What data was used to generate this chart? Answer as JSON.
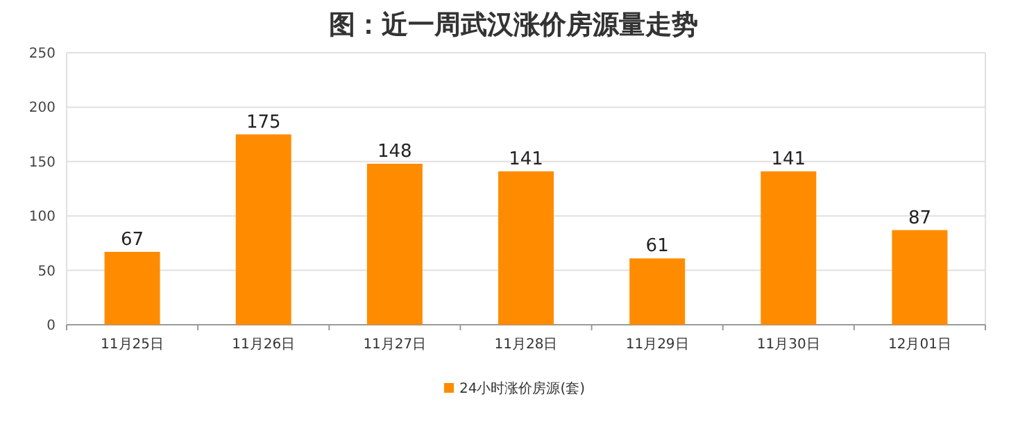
{
  "chart_data": {
    "type": "bar",
    "title": "图：近一周武汉涨价房源量走势",
    "categories": [
      "11月25日",
      "11月26日",
      "11月27日",
      "11月28日",
      "11月29日",
      "11月30日",
      "12月01日"
    ],
    "series": [
      {
        "name": "24小时涨价房源(套)",
        "color": "#ff8c00",
        "values": [
          67,
          175,
          148,
          141,
          61,
          141,
          87
        ]
      }
    ],
    "ylim": [
      0,
      250
    ],
    "yticks": [
      0,
      50,
      100,
      150,
      200,
      250
    ],
    "grid": "y",
    "legend": "bottom",
    "data_labels": true
  }
}
